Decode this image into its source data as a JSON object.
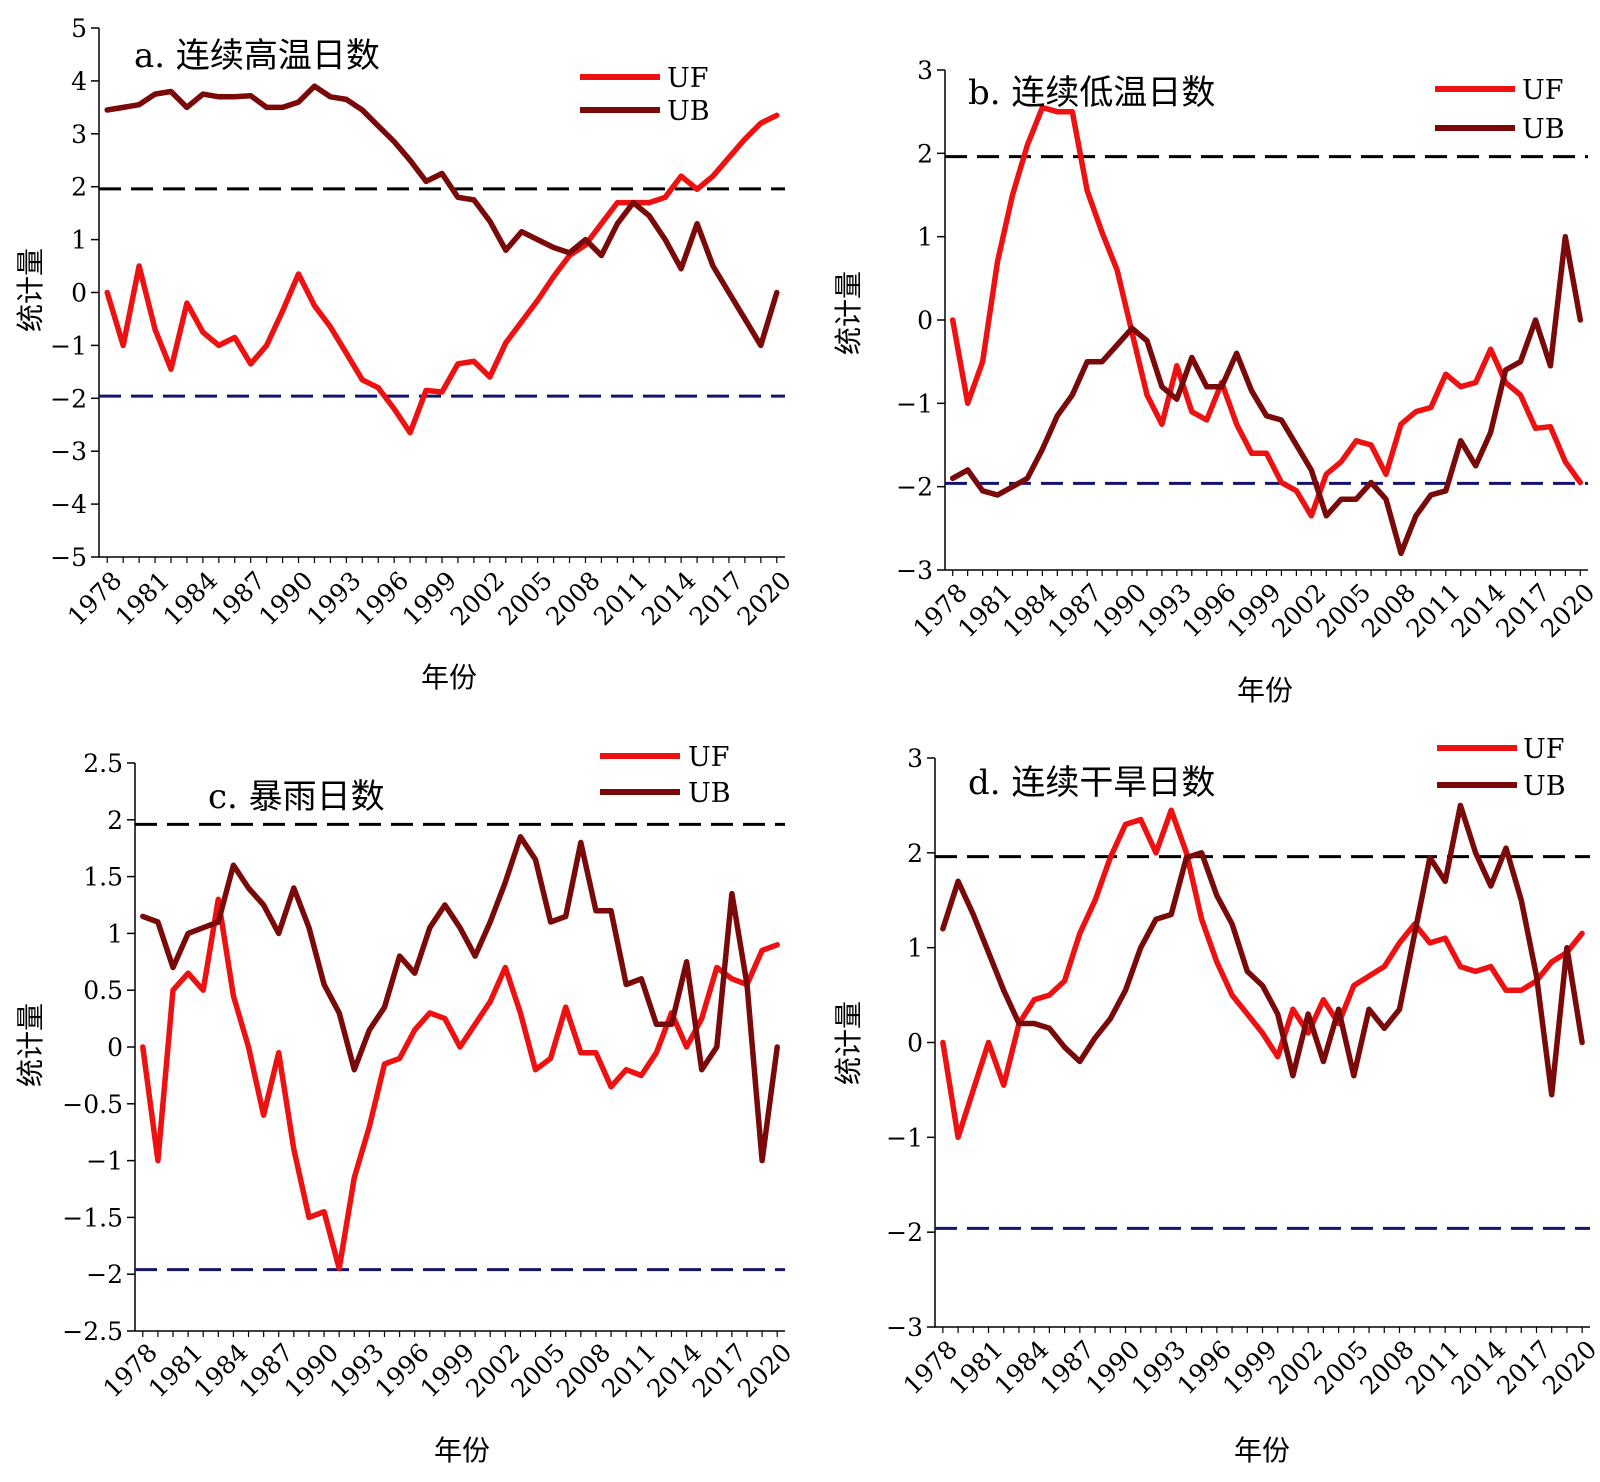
{
  "figure": {
    "background": "#ffffff"
  },
  "style": {
    "uf_color": "#ee1111",
    "ub_color": "#7a0a0a",
    "upper_threshold_color": "#000000",
    "lower_threshold_color": "#14146e",
    "axis_color": "#000000"
  },
  "chart_data": [
    {
      "id": "a",
      "type": "line",
      "title": "a. 连续高温日数",
      "xlabel": "年份",
      "ylabel": "统计量",
      "legend_position": "top-right",
      "x": [
        1978,
        1979,
        1980,
        1981,
        1982,
        1983,
        1984,
        1985,
        1986,
        1987,
        1988,
        1989,
        1990,
        1991,
        1992,
        1993,
        1994,
        1995,
        1996,
        1997,
        1998,
        1999,
        2000,
        2001,
        2002,
        2003,
        2004,
        2005,
        2006,
        2007,
        2008,
        2009,
        2010,
        2011,
        2012,
        2013,
        2014,
        2015,
        2016,
        2017,
        2018,
        2019,
        2020
      ],
      "xticks": [
        "1978",
        "1981",
        "1984",
        "1987",
        "1990",
        "1993",
        "1996",
        "1999",
        "2002",
        "2005",
        "2008",
        "2011",
        "2014",
        "2017",
        "2020"
      ],
      "ylim": [
        -5,
        5
      ],
      "yticks": [
        "−5",
        "−4",
        "−3",
        "−2",
        "−1",
        "0",
        "1",
        "2",
        "3",
        "4",
        "5"
      ],
      "thresholds": [
        1.96,
        -1.96
      ],
      "series": [
        {
          "name": "UF",
          "values": [
            0,
            -1.0,
            0.5,
            -0.7,
            -1.45,
            -0.2,
            -0.75,
            -1.0,
            -0.85,
            -1.35,
            -1.0,
            -0.35,
            0.35,
            -0.25,
            -0.65,
            -1.15,
            -1.65,
            -1.8,
            -2.2,
            -2.65,
            -1.85,
            -1.88,
            -1.35,
            -1.3,
            -1.6,
            -0.95,
            -0.55,
            -0.15,
            0.3,
            0.7,
            0.9,
            1.3,
            1.7,
            1.7,
            1.7,
            1.8,
            2.2,
            1.95,
            2.2,
            2.55,
            2.9,
            3.2,
            3.35
          ]
        },
        {
          "name": "UB",
          "values": [
            3.45,
            3.5,
            3.55,
            3.75,
            3.8,
            3.5,
            3.75,
            3.7,
            3.7,
            3.72,
            3.5,
            3.5,
            3.6,
            3.9,
            3.7,
            3.65,
            3.45,
            3.15,
            2.85,
            2.5,
            2.1,
            2.25,
            1.8,
            1.75,
            1.35,
            0.8,
            1.15,
            1.0,
            0.85,
            0.75,
            1.0,
            0.7,
            1.3,
            1.7,
            1.45,
            1.0,
            0.45,
            1.3,
            0.5,
            0.0,
            -0.5,
            -1.0,
            0.0
          ]
        }
      ]
    },
    {
      "id": "b",
      "type": "line",
      "title": "b. 连续低温日数",
      "xlabel": "年份",
      "ylabel": "统计量",
      "legend_position": "top-right",
      "x": [
        1978,
        1979,
        1980,
        1981,
        1982,
        1983,
        1984,
        1985,
        1986,
        1987,
        1988,
        1989,
        1990,
        1991,
        1992,
        1993,
        1994,
        1995,
        1996,
        1997,
        1998,
        1999,
        2000,
        2001,
        2002,
        2003,
        2004,
        2005,
        2006,
        2007,
        2008,
        2009,
        2010,
        2011,
        2012,
        2013,
        2014,
        2015,
        2016,
        2017,
        2018,
        2019,
        2020
      ],
      "xticks": [
        "1978",
        "1981",
        "1984",
        "1987",
        "1990",
        "1993",
        "1996",
        "1999",
        "2002",
        "2005",
        "2008",
        "2011",
        "2014",
        "2017",
        "2020"
      ],
      "ylim": [
        -3,
        3
      ],
      "yticks": [
        "−3",
        "−2",
        "−1",
        "0",
        "1",
        "2",
        "3"
      ],
      "thresholds": [
        1.96,
        -1.96
      ],
      "series": [
        {
          "name": "UF",
          "values": [
            0,
            -1.0,
            -0.5,
            0.7,
            1.5,
            2.1,
            2.55,
            2.5,
            2.5,
            1.55,
            1.05,
            0.6,
            -0.15,
            -0.9,
            -1.25,
            -0.55,
            -1.1,
            -1.2,
            -0.75,
            -1.25,
            -1.6,
            -1.6,
            -1.95,
            -2.05,
            -2.35,
            -1.85,
            -1.7,
            -1.45,
            -1.5,
            -1.85,
            -1.25,
            -1.1,
            -1.05,
            -0.65,
            -0.8,
            -0.75,
            -0.35,
            -0.75,
            -0.9,
            -1.3,
            -1.28,
            -1.7,
            -1.95
          ]
        },
        {
          "name": "UB",
          "values": [
            -1.9,
            -1.8,
            -2.05,
            -2.1,
            -2.0,
            -1.9,
            -1.55,
            -1.15,
            -0.9,
            -0.5,
            -0.5,
            -0.3,
            -0.1,
            -0.25,
            -0.8,
            -0.95,
            -0.45,
            -0.8,
            -0.8,
            -0.4,
            -0.85,
            -1.15,
            -1.2,
            -1.5,
            -1.8,
            -2.35,
            -2.15,
            -2.15,
            -1.95,
            -2.15,
            -2.8,
            -2.35,
            -2.1,
            -2.05,
            -1.45,
            -1.75,
            -1.35,
            -0.6,
            -0.5,
            0.0,
            -0.55,
            1.0,
            0.0
          ]
        }
      ]
    },
    {
      "id": "c",
      "type": "line",
      "title": "c. 暴雨日数",
      "xlabel": "年份",
      "ylabel": "统计量",
      "legend_position": "top-right",
      "x": [
        1978,
        1979,
        1980,
        1981,
        1982,
        1983,
        1984,
        1985,
        1986,
        1987,
        1988,
        1989,
        1990,
        1991,
        1992,
        1993,
        1994,
        1995,
        1996,
        1997,
        1998,
        1999,
        2000,
        2001,
        2002,
        2003,
        2004,
        2005,
        2006,
        2007,
        2008,
        2009,
        2010,
        2011,
        2012,
        2013,
        2014,
        2015,
        2016,
        2017,
        2018,
        2019,
        2020
      ],
      "xticks": [
        "1978",
        "1981",
        "1984",
        "1987",
        "1990",
        "1993",
        "1996",
        "1999",
        "2002",
        "2005",
        "2008",
        "2011",
        "2014",
        "2017",
        "2020"
      ],
      "ylim": [
        -2.5,
        2.5
      ],
      "yticks": [
        "−2.5",
        "−2",
        "−1.5",
        "−1",
        "−0.5",
        "0",
        "0.5",
        "1",
        "1.5",
        "2",
        "2.5"
      ],
      "thresholds": [
        1.96,
        -1.96
      ],
      "series": [
        {
          "name": "UF",
          "values": [
            0,
            -1.0,
            0.5,
            0.65,
            0.5,
            1.3,
            0.45,
            0.0,
            -0.6,
            -0.05,
            -0.9,
            -1.5,
            -1.45,
            -1.95,
            -1.15,
            -0.7,
            -0.15,
            -0.1,
            0.15,
            0.3,
            0.25,
            0.0,
            0.2,
            0.4,
            0.7,
            0.3,
            -0.2,
            -0.1,
            0.35,
            -0.05,
            -0.05,
            -0.35,
            -0.2,
            -0.25,
            -0.05,
            0.3,
            0.0,
            0.25,
            0.7,
            0.6,
            0.55,
            0.85,
            0.9
          ]
        },
        {
          "name": "UB",
          "values": [
            1.15,
            1.1,
            0.7,
            1.0,
            1.05,
            1.1,
            1.6,
            1.4,
            1.25,
            1.0,
            1.4,
            1.05,
            0.55,
            0.3,
            -0.2,
            0.15,
            0.35,
            0.8,
            0.65,
            1.05,
            1.25,
            1.05,
            0.8,
            1.1,
            1.45,
            1.85,
            1.65,
            1.1,
            1.15,
            1.8,
            1.2,
            1.2,
            0.55,
            0.6,
            0.2,
            0.2,
            0.75,
            -0.2,
            0.0,
            1.35,
            0.55,
            -1.0,
            0.0
          ]
        }
      ]
    },
    {
      "id": "d",
      "type": "line",
      "title": "d. 连续干旱日数",
      "xlabel": "年份",
      "ylabel": "统计量",
      "legend_position": "top-right",
      "x": [
        1978,
        1979,
        1980,
        1981,
        1982,
        1983,
        1984,
        1985,
        1986,
        1987,
        1988,
        1989,
        1990,
        1991,
        1992,
        1993,
        1994,
        1995,
        1996,
        1997,
        1998,
        1999,
        2000,
        2001,
        2002,
        2003,
        2004,
        2005,
        2006,
        2007,
        2008,
        2009,
        2010,
        2011,
        2012,
        2013,
        2014,
        2015,
        2016,
        2017,
        2018,
        2019,
        2020
      ],
      "xticks": [
        "1978",
        "1981",
        "1984",
        "1987",
        "1990",
        "1993",
        "1996",
        "1999",
        "2002",
        "2005",
        "2008",
        "2011",
        "2014",
        "2017",
        "2020"
      ],
      "ylim": [
        -3,
        3
      ],
      "yticks": [
        "−3",
        "−2",
        "−1",
        "0",
        "1",
        "2",
        "3"
      ],
      "thresholds": [
        1.96,
        -1.96
      ],
      "series": [
        {
          "name": "UF",
          "values": [
            0,
            -1.0,
            -0.5,
            0.0,
            -0.45,
            0.2,
            0.45,
            0.5,
            0.65,
            1.15,
            1.5,
            1.95,
            2.3,
            2.35,
            2.0,
            2.45,
            2.0,
            1.3,
            0.85,
            0.5,
            0.3,
            0.1,
            -0.15,
            0.35,
            0.1,
            0.45,
            0.2,
            0.6,
            0.7,
            0.8,
            1.05,
            1.25,
            1.05,
            1.1,
            0.8,
            0.75,
            0.8,
            0.55,
            0.55,
            0.65,
            0.85,
            0.95,
            1.15
          ]
        },
        {
          "name": "UB",
          "values": [
            1.2,
            1.7,
            1.35,
            0.95,
            0.55,
            0.2,
            0.2,
            0.15,
            -0.05,
            -0.2,
            0.05,
            0.25,
            0.55,
            1.0,
            1.3,
            1.35,
            1.95,
            2.0,
            1.55,
            1.25,
            0.75,
            0.6,
            0.3,
            -0.35,
            0.3,
            -0.2,
            0.35,
            -0.35,
            0.35,
            0.15,
            0.35,
            1.15,
            1.95,
            1.7,
            2.5,
            2.0,
            1.65,
            2.05,
            1.5,
            0.7,
            -0.55,
            1.0,
            0.0
          ]
        }
      ]
    }
  ]
}
